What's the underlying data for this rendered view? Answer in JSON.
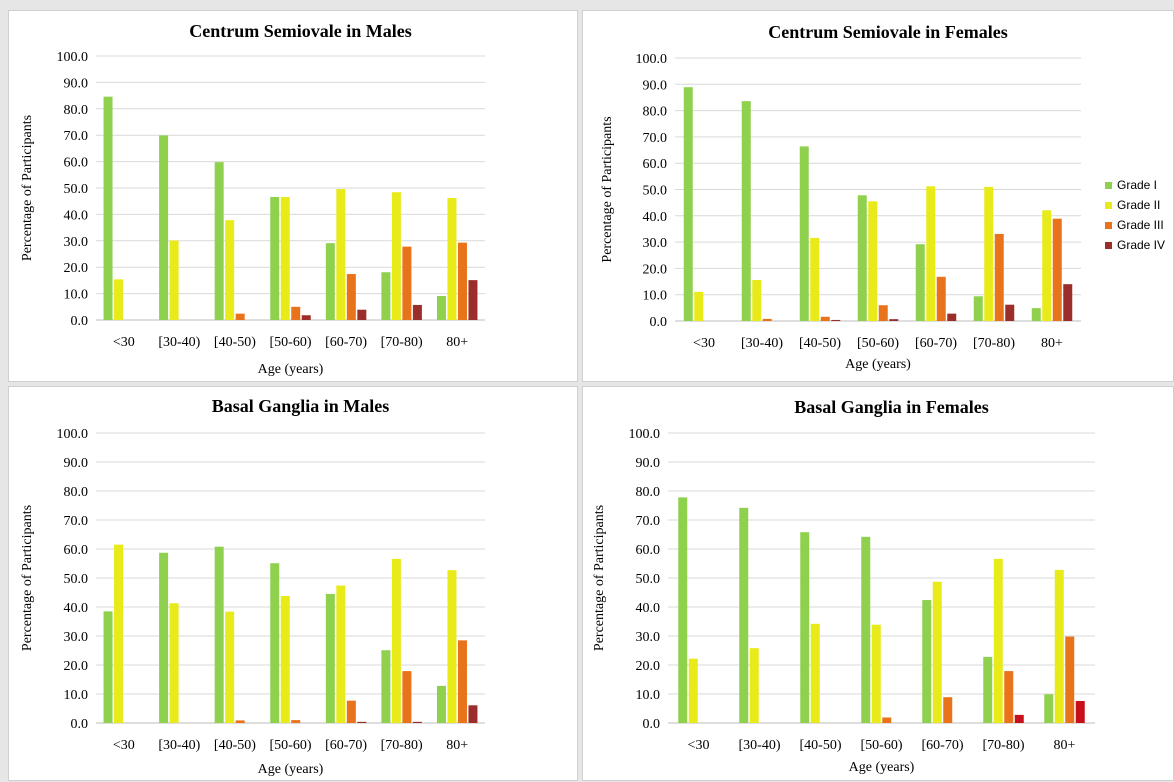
{
  "legend": [
    {
      "label": "Grade I",
      "color": "#8fd14f"
    },
    {
      "label": "Grade II",
      "color": "#e8ea1a"
    },
    {
      "label": "Grade III",
      "color": "#e8731a"
    },
    {
      "label": "Grade IV",
      "color": "#9b2d2a"
    }
  ],
  "chart_data": [
    {
      "type": "bar",
      "title": "Centrum Semiovale in Males",
      "xlabel": "Age (years)",
      "ylabel": "Percentage of Participants",
      "ylim": [
        0,
        100
      ],
      "yticks": [
        "0.0",
        "10.0",
        "20.0",
        "30.0",
        "40.0",
        "50.0",
        "60.0",
        "70.0",
        "80.0",
        "90.0",
        "100.0"
      ],
      "categories": [
        "<30",
        "[30-40)",
        "[40-50)",
        "[50-60)",
        "[60-70)",
        "[70-80)",
        "80+"
      ],
      "series": [
        {
          "name": "Grade I",
          "color": "#8fd14f",
          "values": [
            84.6,
            69.9,
            59.8,
            46.6,
            29.1,
            18.1,
            9.1
          ]
        },
        {
          "name": "Grade II",
          "color": "#e8ea1a",
          "values": [
            15.4,
            30.1,
            37.8,
            46.6,
            49.6,
            48.4,
            46.2
          ]
        },
        {
          "name": "Grade III",
          "color": "#e8731a",
          "values": [
            0,
            0,
            2.4,
            5.0,
            17.4,
            27.8,
            29.3
          ]
        },
        {
          "name": "Grade IV",
          "color": "#9b2d2a",
          "values": [
            0,
            0,
            0,
            1.8,
            3.9,
            5.7,
            15.1
          ]
        }
      ],
      "grid": true
    },
    {
      "type": "bar",
      "title": "Centrum Semiovale in Females",
      "xlabel": "Age (years)",
      "ylabel": "Percentage of Participants",
      "ylim": [
        0,
        100
      ],
      "yticks": [
        "0.0",
        "10.0",
        "20.0",
        "30.0",
        "40.0",
        "50.0",
        "60.0",
        "70.0",
        "80.0",
        "90.0",
        "100.0"
      ],
      "categories": [
        "<30",
        "[30-40)",
        "[40-50)",
        "[50-60)",
        "[60-70)",
        "[70-80)",
        "80+"
      ],
      "series": [
        {
          "name": "Grade I",
          "color": "#8fd14f",
          "values": [
            88.9,
            83.6,
            66.4,
            47.8,
            29.2,
            9.4,
            4.9
          ]
        },
        {
          "name": "Grade II",
          "color": "#e8ea1a",
          "values": [
            11.1,
            15.6,
            31.6,
            45.5,
            51.2,
            51.0,
            42.1
          ]
        },
        {
          "name": "Grade III",
          "color": "#e8731a",
          "values": [
            0,
            0.8,
            1.6,
            6.0,
            16.8,
            33.1,
            38.9
          ]
        },
        {
          "name": "Grade IV",
          "color": "#9b2d2a",
          "values": [
            0,
            0,
            0.4,
            0.7,
            2.8,
            6.2,
            14.0
          ]
        }
      ],
      "legend": "right",
      "grid": true
    },
    {
      "type": "bar",
      "title": "Basal Ganglia in Males",
      "xlabel": "Age (years)",
      "ylabel": "Percentage of Participants",
      "ylim": [
        0,
        100
      ],
      "yticks": [
        "0.0",
        "10.0",
        "20.0",
        "30.0",
        "40.0",
        "50.0",
        "60.0",
        "70.0",
        "80.0",
        "90.0",
        "100.0"
      ],
      "categories": [
        "<30",
        "[30-40)",
        "[40-50)",
        "[50-60)",
        "[60-70)",
        "[70-80)",
        "80+"
      ],
      "series": [
        {
          "name": "Grade I",
          "color": "#8fd14f",
          "values": [
            38.5,
            58.7,
            60.8,
            55.1,
            44.5,
            25.1,
            12.8
          ]
        },
        {
          "name": "Grade II",
          "color": "#e8ea1a",
          "values": [
            61.5,
            41.3,
            38.4,
            43.8,
            47.4,
            56.6,
            52.7
          ]
        },
        {
          "name": "Grade III",
          "color": "#e8731a",
          "values": [
            0,
            0,
            0.9,
            1.0,
            7.7,
            17.9,
            28.5
          ]
        },
        {
          "name": "Grade IV",
          "color": "#9b2d2a",
          "values": [
            0,
            0,
            0,
            0,
            0.4,
            0.4,
            6.1
          ]
        }
      ],
      "grid": true
    },
    {
      "type": "bar",
      "title": "Basal Ganglia in Females",
      "xlabel": "Age (years)",
      "ylabel": "Percentage of Participants",
      "ylim": [
        0,
        100
      ],
      "yticks": [
        "0.0",
        "10.0",
        "20.0",
        "30.0",
        "40.0",
        "50.0",
        "60.0",
        "70.0",
        "80.0",
        "90.0",
        "100.0"
      ],
      "categories": [
        "<30",
        "[30-40)",
        "[40-50)",
        "[50-60)",
        "[60-70)",
        "[70-80)",
        "80+"
      ],
      "series": [
        {
          "name": "Grade I",
          "color": "#8fd14f",
          "values": [
            77.8,
            74.2,
            65.8,
            64.2,
            42.4,
            22.8,
            9.9
          ]
        },
        {
          "name": "Grade II",
          "color": "#e8ea1a",
          "values": [
            22.2,
            25.8,
            34.2,
            33.9,
            48.7,
            56.6,
            52.8
          ]
        },
        {
          "name": "Grade III",
          "color": "#e8731a",
          "values": [
            0,
            0,
            0,
            1.9,
            8.9,
            17.9,
            29.8
          ]
        },
        {
          "name": "Grade IV",
          "color": "#c8101a",
          "values": [
            0,
            0,
            0,
            0,
            0,
            2.8,
            7.6
          ]
        }
      ],
      "grid": true
    }
  ]
}
